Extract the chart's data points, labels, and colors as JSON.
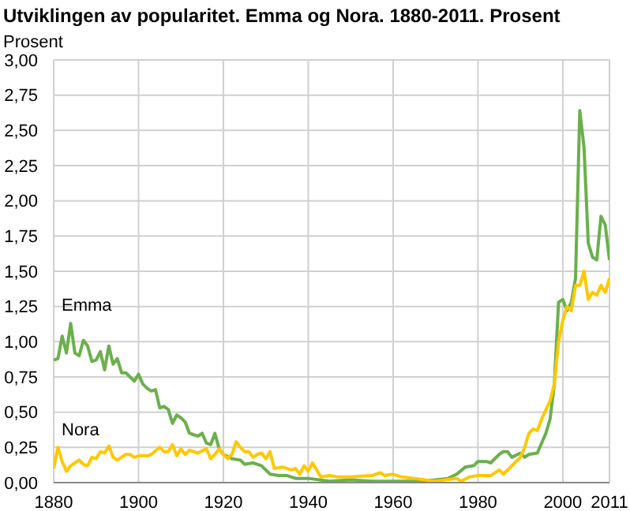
{
  "chart_data": {
    "type": "line",
    "title": "Utviklingen av popularitet. Emma og Nora. 1880-2011. Prosent",
    "ylabel": "Prosent",
    "xlim": [
      1880,
      2011
    ],
    "xticks": [
      1880,
      1900,
      1920,
      1940,
      1960,
      1980,
      2000,
      2011
    ],
    "ylim": [
      0,
      3
    ],
    "yticks": [
      {
        "value": 0,
        "label": "0,00"
      },
      {
        "value": 0.25,
        "label": "0,25"
      },
      {
        "value": 0.5,
        "label": "0,50"
      },
      {
        "value": 0.75,
        "label": "0,75"
      },
      {
        "value": 1,
        "label": "1,00"
      },
      {
        "value": 1.25,
        "label": "1,25"
      },
      {
        "value": 1.5,
        "label": "1,50"
      },
      {
        "value": 1.75,
        "label": "1,75"
      },
      {
        "value": 2,
        "label": "2,00"
      },
      {
        "value": 2.25,
        "label": "2,25"
      },
      {
        "value": 2.5,
        "label": "2,50"
      },
      {
        "value": 2.75,
        "label": "2,75"
      },
      {
        "value": 3,
        "label": "3,00"
      }
    ],
    "grid": true,
    "marker": "none",
    "line_style": "solid",
    "series": [
      {
        "name": "Emma",
        "color": "#6ab04c",
        "x": [
          1880,
          1881,
          1882,
          1883,
          1884,
          1885,
          1886,
          1887,
          1888,
          1889,
          1890,
          1891,
          1892,
          1893,
          1894,
          1895,
          1896,
          1897,
          1898,
          1899,
          1900,
          1901,
          1902,
          1903,
          1904,
          1905,
          1906,
          1907,
          1908,
          1909,
          1910,
          1911,
          1912,
          1913,
          1914,
          1915,
          1916,
          1917,
          1918,
          1919,
          1920,
          1922,
          1924,
          1925,
          1927,
          1929,
          1931,
          1933,
          1935,
          1937,
          1940,
          1945,
          1950,
          1955,
          1960,
          1965,
          1970,
          1973,
          1975,
          1977,
          1979,
          1980,
          1982,
          1983,
          1985,
          1986,
          1987,
          1988,
          1990,
          1991,
          1992,
          1994,
          1996,
          1997,
          1998,
          1999,
          2000,
          2001,
          2002,
          2003,
          2004,
          2005,
          2006,
          2007,
          2008,
          2009,
          2010,
          2011
        ],
        "values": [
          0.87,
          0.88,
          1.04,
          0.92,
          1.13,
          0.92,
          0.9,
          1.01,
          0.97,
          0.86,
          0.87,
          0.93,
          0.8,
          0.97,
          0.84,
          0.88,
          0.78,
          0.78,
          0.75,
          0.72,
          0.77,
          0.7,
          0.67,
          0.65,
          0.66,
          0.53,
          0.54,
          0.52,
          0.42,
          0.48,
          0.46,
          0.43,
          0.35,
          0.34,
          0.33,
          0.35,
          0.28,
          0.27,
          0.35,
          0.24,
          0.2,
          0.17,
          0.16,
          0.13,
          0.14,
          0.12,
          0.06,
          0.05,
          0.05,
          0.03,
          0.03,
          0.01,
          0.02,
          0.01,
          0.01,
          0.01,
          0.02,
          0.03,
          0.06,
          0.11,
          0.12,
          0.15,
          0.15,
          0.14,
          0.2,
          0.22,
          0.22,
          0.18,
          0.21,
          0.18,
          0.2,
          0.21,
          0.35,
          0.45,
          0.7,
          1.28,
          1.3,
          1.22,
          1.28,
          1.45,
          2.64,
          2.38,
          1.7,
          1.6,
          1.58,
          1.89,
          1.83,
          1.58
        ]
      },
      {
        "name": "Nora",
        "color": "#ffc800",
        "x": [
          1880,
          1881,
          1882,
          1883,
          1884,
          1885,
          1886,
          1887,
          1888,
          1889,
          1890,
          1891,
          1892,
          1893,
          1894,
          1895,
          1897,
          1898,
          1899,
          1900,
          1902,
          1903,
          1905,
          1906,
          1907,
          1908,
          1909,
          1910,
          1911,
          1912,
          1914,
          1916,
          1917,
          1918,
          1919,
          1920,
          1921,
          1922,
          1923,
          1924,
          1925,
          1926,
          1927,
          1928,
          1929,
          1930,
          1931,
          1932,
          1934,
          1936,
          1937,
          1938,
          1939,
          1940,
          1941,
          1943,
          1945,
          1947,
          1950,
          1955,
          1957,
          1958,
          1960,
          1962,
          1965,
          1970,
          1975,
          1976,
          1978,
          1980,
          1983,
          1985,
          1986,
          1988,
          1990,
          1991,
          1992,
          1993,
          1994,
          1995,
          1997,
          1998,
          1999,
          2000,
          2001,
          2002,
          2003,
          2004,
          2005,
          2006,
          2007,
          2008,
          2009,
          2010,
          2011
        ],
        "values": [
          0.1,
          0.25,
          0.15,
          0.08,
          0.12,
          0.14,
          0.16,
          0.13,
          0.12,
          0.18,
          0.17,
          0.22,
          0.21,
          0.26,
          0.18,
          0.16,
          0.2,
          0.2,
          0.18,
          0.19,
          0.19,
          0.2,
          0.25,
          0.22,
          0.22,
          0.27,
          0.19,
          0.24,
          0.2,
          0.23,
          0.21,
          0.24,
          0.17,
          0.2,
          0.24,
          0.2,
          0.17,
          0.2,
          0.29,
          0.25,
          0.22,
          0.22,
          0.18,
          0.2,
          0.21,
          0.17,
          0.22,
          0.1,
          0.11,
          0.09,
          0.1,
          0.06,
          0.12,
          0.08,
          0.14,
          0.04,
          0.05,
          0.04,
          0.04,
          0.05,
          0.07,
          0.05,
          0.06,
          0.04,
          0.03,
          0.01,
          0.03,
          0.01,
          0.04,
          0.05,
          0.05,
          0.09,
          0.06,
          0.12,
          0.18,
          0.25,
          0.35,
          0.38,
          0.37,
          0.45,
          0.58,
          0.7,
          1.0,
          1.15,
          1.25,
          1.22,
          1.4,
          1.4,
          1.5,
          1.3,
          1.35,
          1.33,
          1.4,
          1.35,
          1.45
        ]
      }
    ]
  }
}
